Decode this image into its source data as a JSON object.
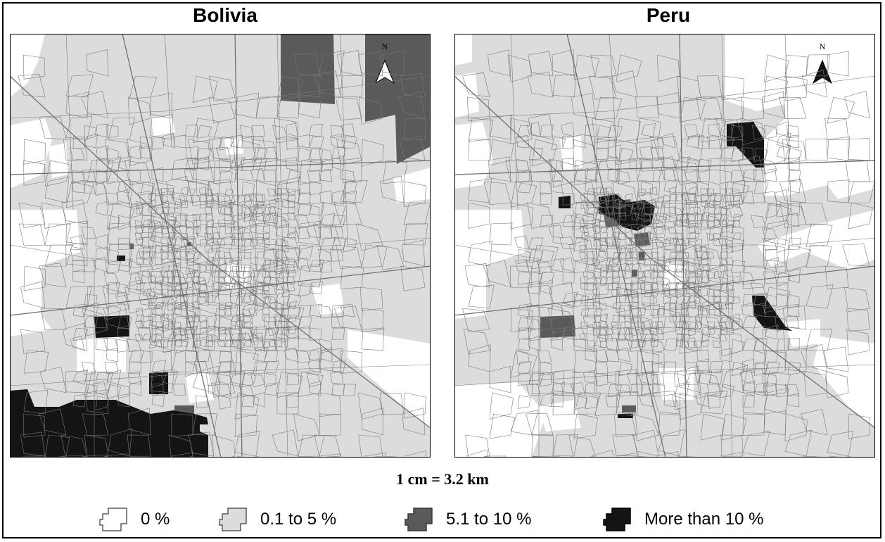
{
  "maps": [
    {
      "title": "Bolivia",
      "north_label": "N"
    },
    {
      "title": "Peru",
      "north_label": "N"
    }
  ],
  "scale_text": "1 cm = 3.2 km",
  "legend": [
    {
      "label": "0 %",
      "color": "#ffffff"
    },
    {
      "label": "0.1 to 5 %",
      "color": "#dcdcdc"
    },
    {
      "label": "5.1 to 10 %",
      "color": "#5a5a5a"
    },
    {
      "label": "More than 10 %",
      "color": "#141414"
    }
  ],
  "colors": {
    "boundary": "#7a7a7a",
    "outline": "#000000"
  }
}
